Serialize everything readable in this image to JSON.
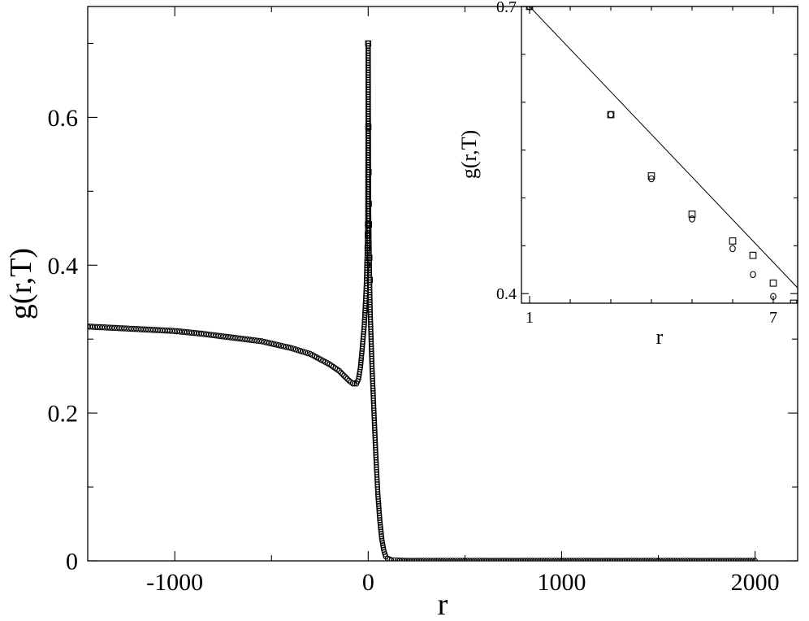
{
  "chart_data": [
    {
      "id": "main",
      "type": "scatter",
      "title": "",
      "xlabel": "r",
      "ylabel": "g(r,T)",
      "xlim": [
        -1450,
        2220
      ],
      "ylim": [
        0,
        0.75
      ],
      "x_ticks": [
        -1000,
        0,
        1000,
        2000
      ],
      "x_tick_labels": [
        "-1000",
        "0",
        "1000",
        "2000"
      ],
      "y_ticks": [
        0,
        0.2,
        0.4,
        0.6
      ],
      "y_tick_labels": [
        "0",
        "0.2",
        "0.4",
        "0.6"
      ],
      "grid": false,
      "series": [
        {
          "marker": "circle",
          "x": [
            -1450,
            -1300,
            -1150,
            -1000,
            -850,
            -700,
            -550,
            -400,
            -300,
            -200,
            -150,
            -100,
            -80,
            -60,
            -50,
            -40,
            -30,
            -20,
            -15,
            -10,
            -8,
            -6,
            -4,
            -2,
            0,
            2,
            4,
            6,
            8,
            10,
            15,
            20,
            30,
            40,
            50,
            60,
            70,
            80,
            90,
            100,
            120,
            150,
            200,
            300,
            500,
            700,
            1000,
            1300,
            1600,
            2000
          ],
          "y": [
            0.317,
            0.315,
            0.313,
            0.311,
            0.307,
            0.302,
            0.297,
            0.288,
            0.28,
            0.266,
            0.257,
            0.244,
            0.24,
            0.24,
            0.246,
            0.262,
            0.29,
            0.32,
            0.345,
            0.372,
            0.39,
            0.41,
            0.43,
            0.46,
            0.7,
            0.48,
            0.44,
            0.4,
            0.37,
            0.34,
            0.3,
            0.26,
            0.2,
            0.14,
            0.09,
            0.055,
            0.03,
            0.015,
            0.006,
            0.003,
            0.001,
            0.0005,
            0.0,
            0.0,
            0.0,
            0.0,
            0.0,
            0.0,
            0.0,
            0.0
          ]
        },
        {
          "marker": "square",
          "x": [
            -4,
            -3,
            -2,
            -1,
            0,
            1,
            2,
            3,
            4,
            6,
            8
          ],
          "y": [
            0.4,
            0.423,
            0.441,
            0.455,
            0.7,
            0.587,
            0.526,
            0.483,
            0.455,
            0.41,
            0.38
          ]
        }
      ]
    },
    {
      "id": "inset",
      "type": "scatter",
      "title": "",
      "xlabel": "r",
      "ylabel": "g(r,T)",
      "xlim": [
        0.8,
        7.6
      ],
      "ylim": [
        0.39,
        0.7
      ],
      "x_ticks": [
        1,
        7
      ],
      "x_tick_labels": [
        "1",
        "7"
      ],
      "y_ticks": [
        0.4,
        0.7
      ],
      "y_tick_labels": [
        "0.4",
        "0.7"
      ],
      "grid": false,
      "series": [
        {
          "marker": "square",
          "x": [
            1,
            3,
            4,
            5,
            6,
            6.5,
            7,
            7.5
          ],
          "y": [
            0.7,
            0.587,
            0.523,
            0.483,
            0.455,
            0.44,
            0.411,
            0.39
          ]
        },
        {
          "marker": "circle",
          "x": [
            1,
            3,
            4,
            5,
            6,
            6.5,
            7
          ],
          "y": [
            0.7,
            0.587,
            0.52,
            0.478,
            0.447,
            0.42,
            0.397
          ]
        },
        {
          "marker": "line",
          "x": [
            1,
            7.6
          ],
          "y": [
            0.7,
            0.406
          ]
        }
      ]
    }
  ]
}
